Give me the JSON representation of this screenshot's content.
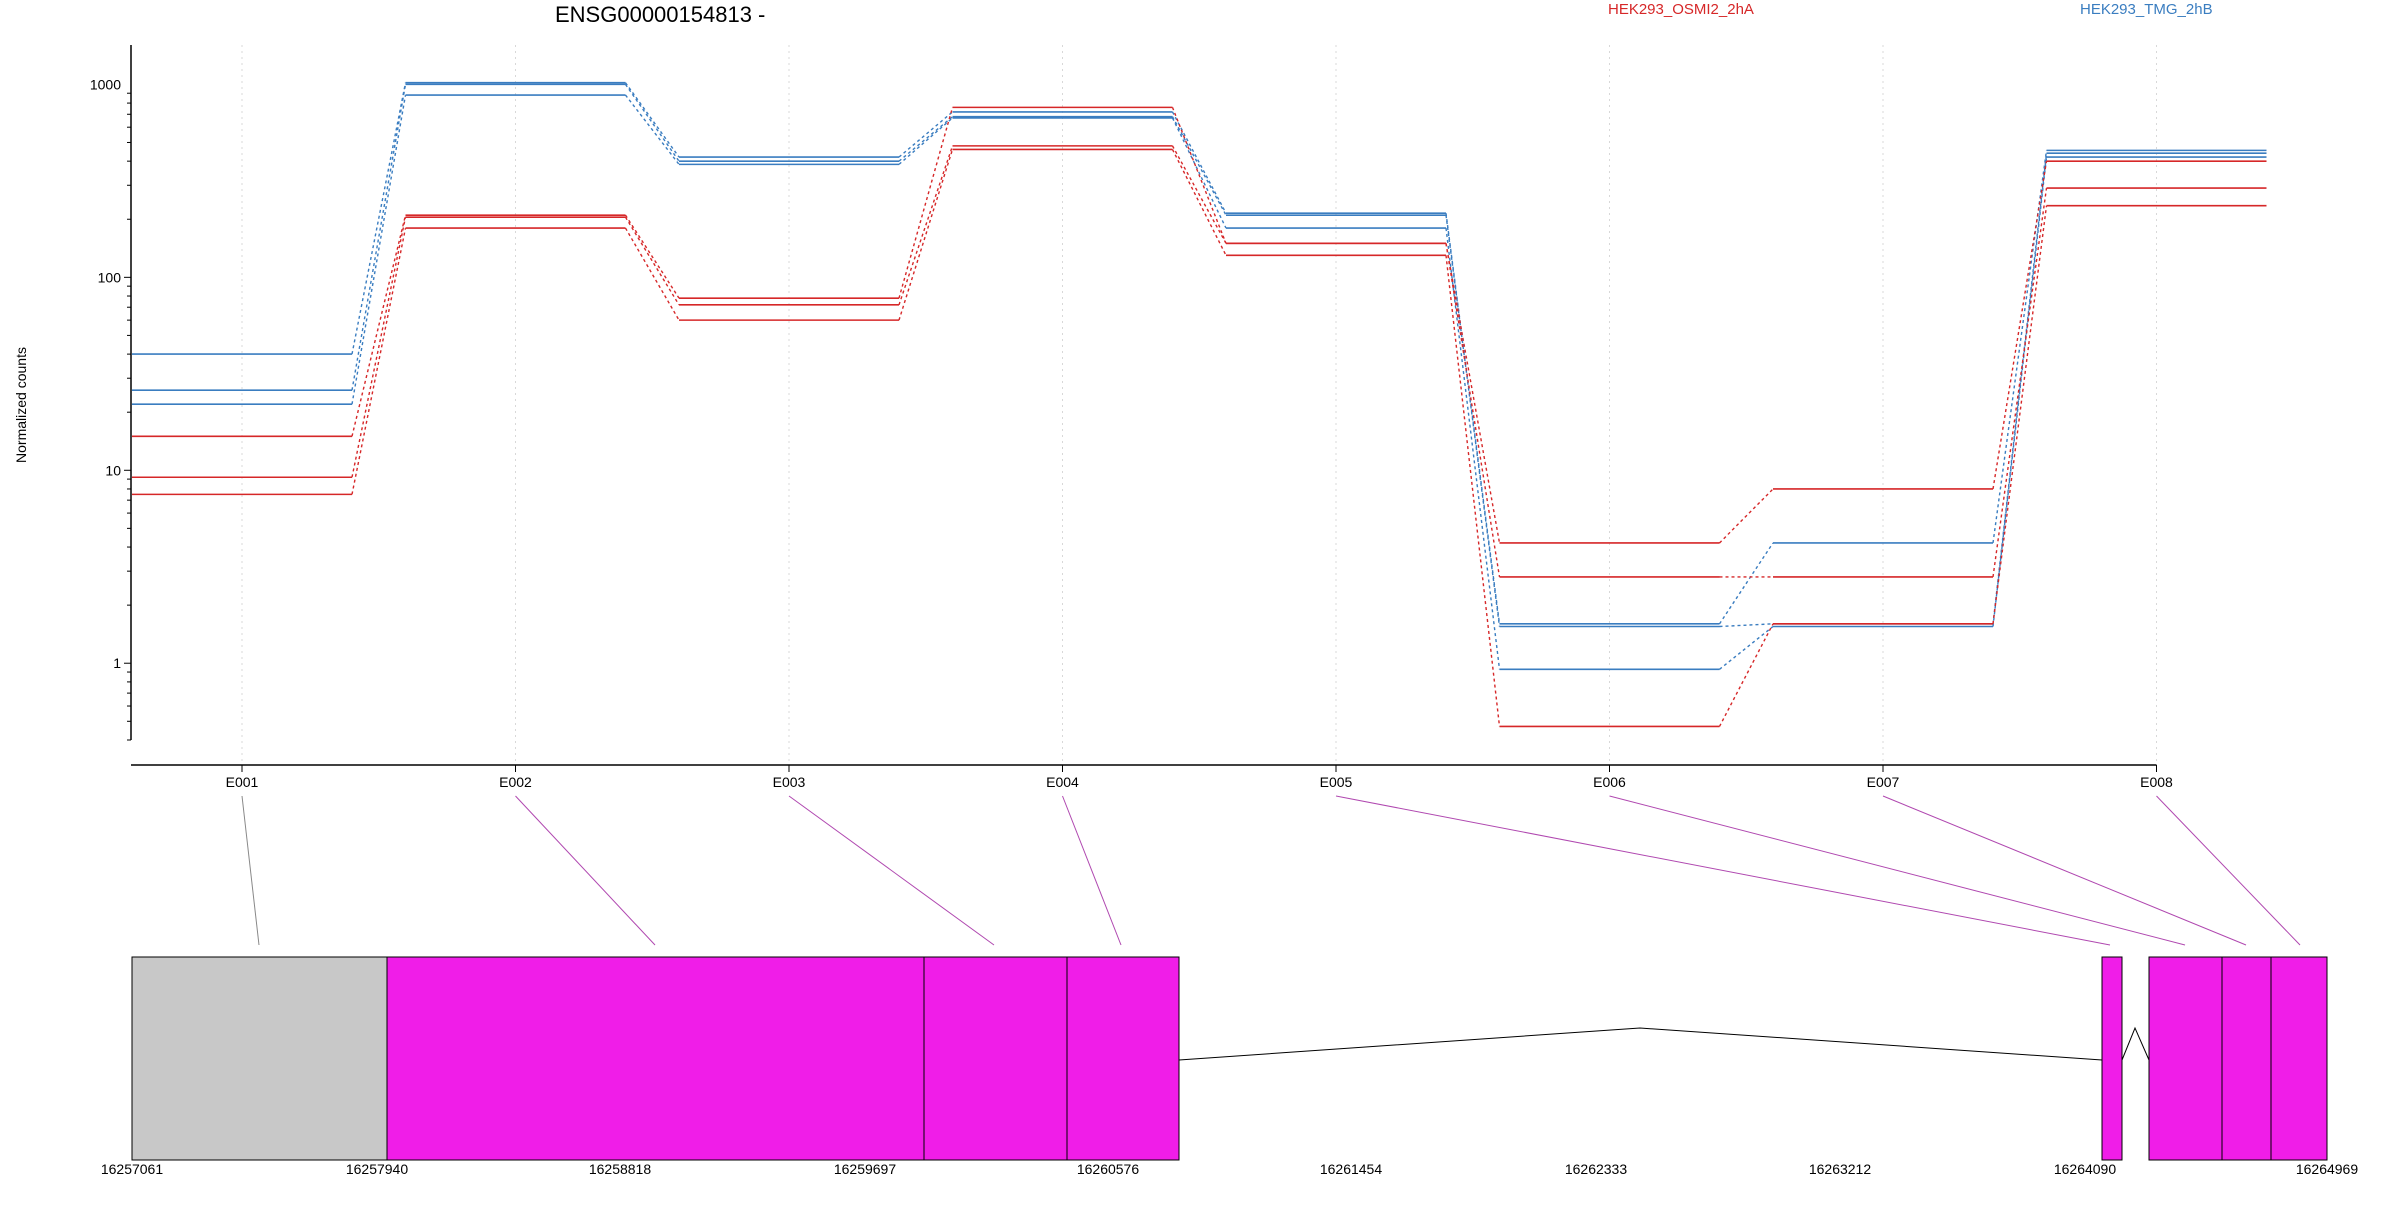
{
  "chart_data": {
    "type": "line",
    "title": "ENSG00000154813 -",
    "ylabel": "Normalized counts",
    "yscale": "log",
    "ylim": [
      0.4,
      1600
    ],
    "yticks": [
      1,
      10,
      100,
      1000
    ],
    "ytick_labels": [
      "1",
      "10",
      "100",
      "1000"
    ],
    "categories": [
      "E001",
      "E002",
      "E003",
      "E004",
      "E005",
      "E006",
      "E007",
      "E008"
    ],
    "legend": [
      {
        "name": "HEK293_OSMI2_2hA",
        "color": "#d62728"
      },
      {
        "name": "HEK293_TMG_2hB",
        "color": "#3a7dc0"
      }
    ],
    "series": [
      {
        "group": "HEK293_TMG_2hB",
        "color": "#3a7dc0",
        "values": [
          40,
          1020,
          420,
          720,
          215,
          1.6,
          4.2,
          455
        ]
      },
      {
        "group": "HEK293_TMG_2hB",
        "color": "#3a7dc0",
        "values": [
          26,
          1000,
          400,
          680,
          210,
          1.55,
          1.6,
          440
        ]
      },
      {
        "group": "HEK293_TMG_2hB",
        "color": "#3a7dc0",
        "values": [
          22,
          880,
          385,
          670,
          180,
          0.93,
          1.55,
          420
        ]
      },
      {
        "group": "HEK293_OSMI2_2hA",
        "color": "#d62728",
        "values": [
          15,
          210,
          78,
          760,
          150,
          4.2,
          8,
          400
        ]
      },
      {
        "group": "HEK293_OSMI2_2hA",
        "color": "#d62728",
        "values": [
          9.2,
          205,
          72,
          480,
          150,
          2.8,
          2.8,
          290
        ]
      },
      {
        "group": "HEK293_OSMI2_2hA",
        "color": "#d62728",
        "values": [
          7.5,
          180,
          60,
          460,
          130,
          0.47,
          1.6,
          235
        ]
      }
    ],
    "gene_model": {
      "coord_labels": [
        "16257061",
        "16257940",
        "16258818",
        "16259697",
        "16260576",
        "16261454",
        "16262333",
        "16263212",
        "16264090",
        "16264969"
      ],
      "exon_color": "#f01de8",
      "untested_color": "#c8c8c8"
    }
  }
}
